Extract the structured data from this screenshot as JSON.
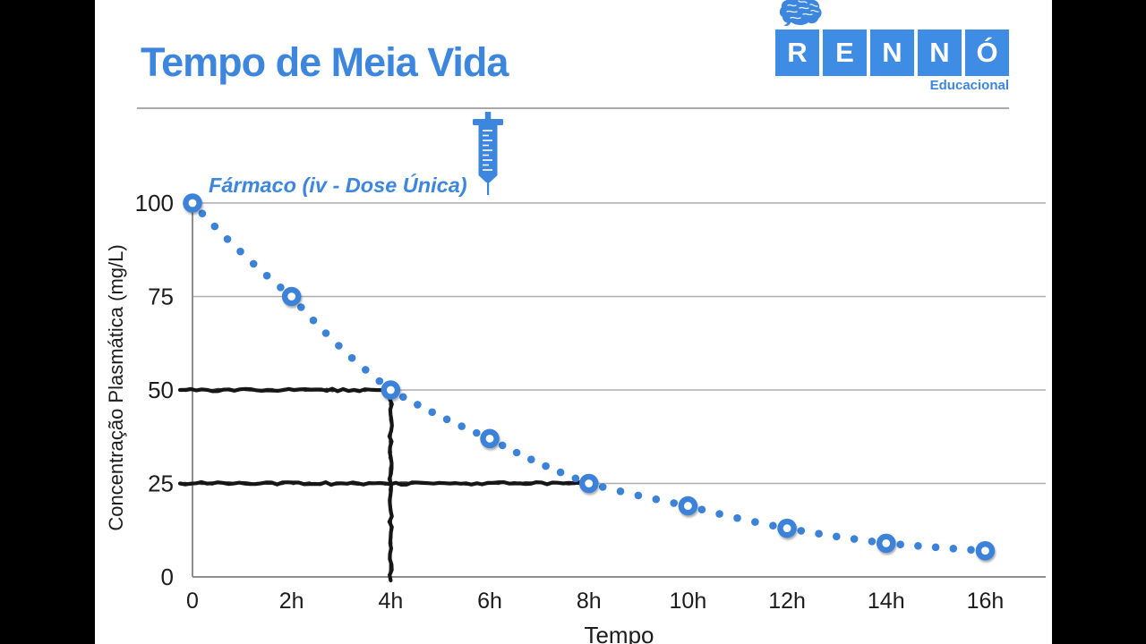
{
  "header": {
    "title": "Tempo de Meia Vida",
    "accent_color": "#3d86dd"
  },
  "logo": {
    "letters": [
      "R",
      "E",
      "N",
      "N",
      "Ó"
    ],
    "subtitle": "Educacional",
    "square_color": "#3f8ce4",
    "letter_color": "#ffffff",
    "brain_icon": "brain-icon"
  },
  "chart_data": {
    "type": "scatter",
    "series_label": "Fármaco (iv - Dose Única)",
    "x": [
      0,
      2,
      4,
      6,
      8,
      10,
      12,
      14,
      16
    ],
    "x_tick_labels": [
      "0",
      "2h",
      "4h",
      "6h",
      "8h",
      "10h",
      "12h",
      "14h",
      "16h"
    ],
    "values": [
      100,
      75,
      50,
      37,
      25,
      19,
      13,
      9,
      7
    ],
    "xlabel": "Tempo",
    "ylabel": "Concentração Plasmática (mg/L)",
    "y_ticks": [
      0,
      25,
      50,
      75,
      100
    ],
    "ylim": [
      0,
      100
    ],
    "xlim": [
      0,
      16
    ],
    "grid": true,
    "legend_position": "top-left-inside",
    "point_color": "#3b82d8",
    "grid_color": "#aeaeae",
    "axis_color": "#8f8f8f",
    "tick_color": "#1c1c1c",
    "annotation_color": "#161616",
    "annotations": [
      {
        "kind": "h-line",
        "y": 50,
        "x_from": 0,
        "x_to": 4
      },
      {
        "kind": "v-line",
        "x": 4,
        "y_from": 0,
        "y_to": 50
      },
      {
        "kind": "h-line",
        "y": 25,
        "x_from": 0,
        "x_to": 8
      }
    ],
    "icon": "syringe-icon"
  }
}
